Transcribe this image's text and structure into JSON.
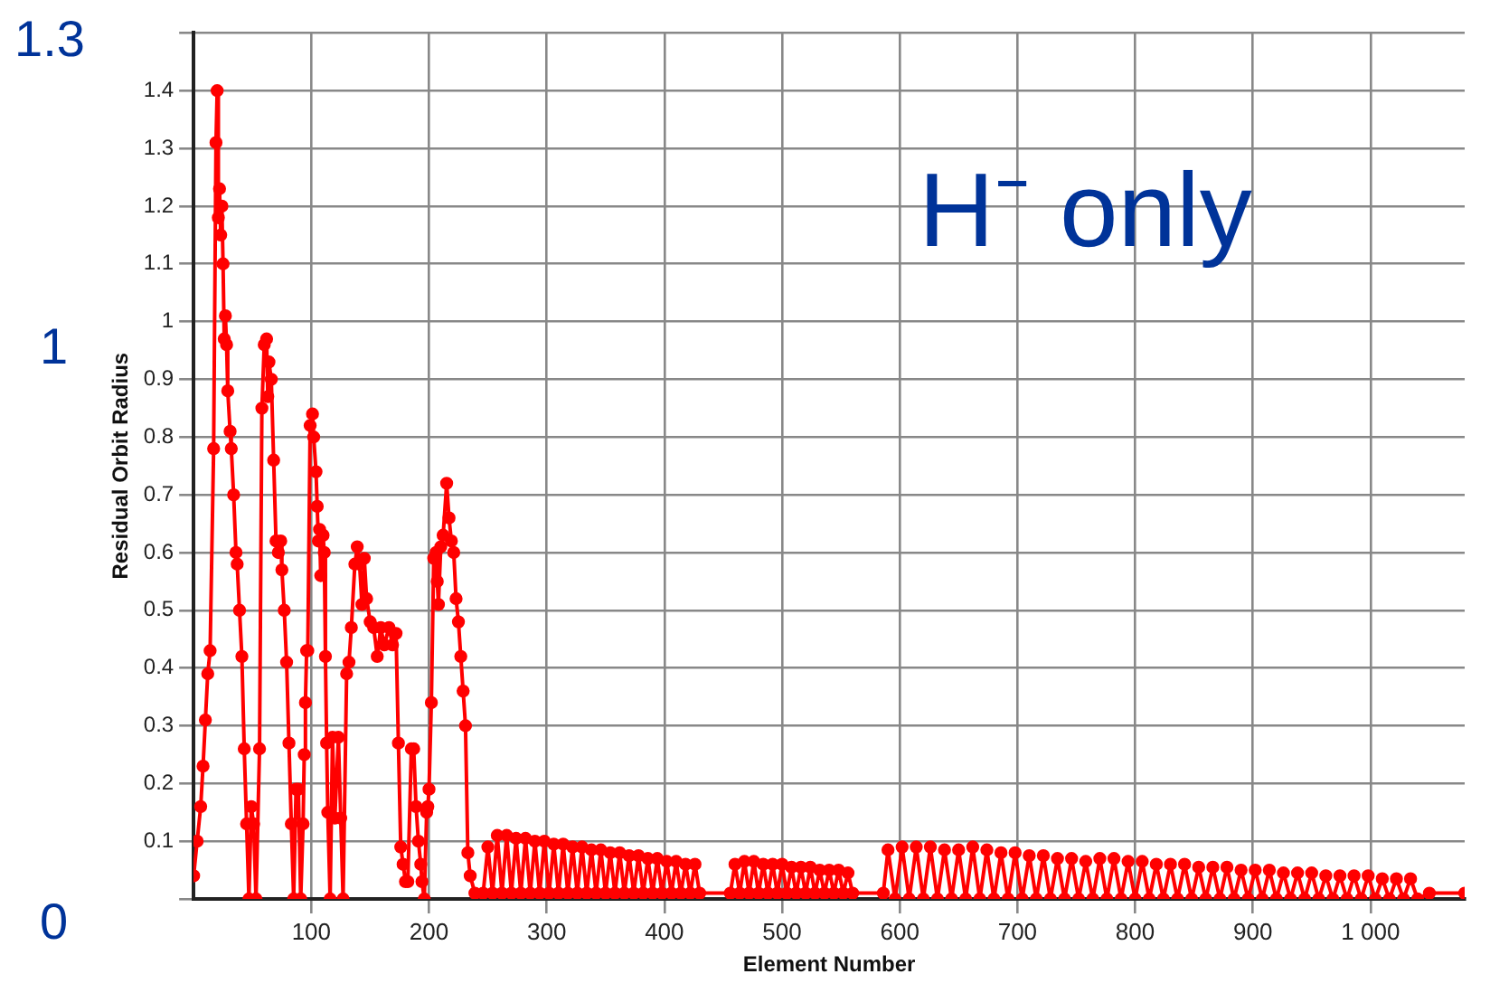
{
  "chart_data": {
    "type": "line",
    "xlabel": "Element Number",
    "ylabel": "Residual Orbit Radius",
    "color": "#ff0000",
    "marker": "circle",
    "grid": true,
    "annotations": [
      "1.3",
      "1",
      "0",
      "H⁻ only"
    ],
    "xlim": [
      0,
      1080
    ],
    "xticks": [
      100,
      200,
      300,
      400,
      500,
      600,
      700,
      800,
      900,
      {
        "value": 1000,
        "label": "1 000"
      }
    ],
    "ylim": [
      0,
      1.5
    ],
    "yticks": [
      {
        "value": 0,
        "label": null
      },
      0.1,
      0.2,
      0.3,
      0.4,
      0.5,
      0.6,
      0.7,
      0.8,
      0.9,
      1,
      1.1,
      1.2,
      1.3,
      1.4,
      {
        "value": 1.5,
        "label": null
      }
    ],
    "x": [
      0,
      3,
      6,
      8,
      10,
      12,
      14,
      17,
      19,
      20,
      21,
      22,
      23,
      24,
      25,
      26,
      27,
      28,
      29,
      31,
      32,
      34,
      36,
      37,
      39,
      41,
      43,
      45,
      47,
      49,
      51,
      53,
      56,
      58,
      60,
      62,
      63,
      64,
      66,
      68,
      70,
      72,
      74,
      75,
      77,
      79,
      81,
      83,
      85,
      87,
      89,
      91,
      93,
      94,
      95,
      96,
      97,
      99,
      101,
      102,
      104,
      105,
      106,
      107,
      108,
      110,
      111,
      112,
      113,
      114,
      116,
      118,
      120,
      123,
      125,
      127,
      130,
      132,
      134,
      137,
      139,
      141,
      143,
      145,
      147,
      150,
      153,
      156,
      159,
      162,
      166,
      169,
      172,
      174,
      176,
      178,
      180,
      182,
      185,
      187,
      189,
      191,
      193,
      194,
      196,
      198,
      199,
      200,
      202,
      204,
      206,
      207,
      208,
      210,
      212,
      215,
      217,
      219,
      221,
      223,
      225,
      227,
      229,
      231,
      233,
      235,
      239,
      246,
      250,
      254,
      258,
      262,
      266,
      270,
      274,
      278,
      282,
      286,
      290,
      294,
      298,
      302,
      306,
      310,
      314,
      318,
      322,
      326,
      330,
      334,
      338,
      342,
      346,
      350,
      354,
      358,
      362,
      366,
      370,
      374,
      378,
      382,
      386,
      390,
      394,
      398,
      402,
      406,
      410,
      414,
      418,
      422,
      426,
      430,
      456,
      460,
      464,
      468,
      472,
      476,
      480,
      484,
      488,
      492,
      496,
      500,
      504,
      508,
      512,
      516,
      520,
      524,
      528,
      532,
      536,
      540,
      544,
      548,
      552,
      556,
      560,
      586,
      590,
      596,
      602,
      608,
      614,
      620,
      626,
      632,
      638,
      644,
      650,
      656,
      662,
      668,
      674,
      680,
      686,
      692,
      698,
      704,
      710,
      716,
      722,
      728,
      734,
      740,
      746,
      752,
      758,
      764,
      770,
      776,
      782,
      788,
      794,
      800,
      806,
      812,
      818,
      824,
      830,
      836,
      842,
      848,
      854,
      860,
      866,
      872,
      878,
      884,
      890,
      896,
      902,
      908,
      914,
      920,
      926,
      932,
      938,
      944,
      950,
      956,
      962,
      968,
      974,
      980,
      986,
      992,
      998,
      1004,
      1010,
      1016,
      1022,
      1028,
      1034,
      1040,
      1050,
      1080
    ],
    "values": [
      0.04,
      0.1,
      0.16,
      0.23,
      0.31,
      0.39,
      0.43,
      0.78,
      1.31,
      1.4,
      1.18,
      1.23,
      1.15,
      1.2,
      1.1,
      0.97,
      1.01,
      0.96,
      0.88,
      0.81,
      0.78,
      0.7,
      0.6,
      0.58,
      0.5,
      0.42,
      0.26,
      0.13,
      0,
      0.16,
      0.13,
      0,
      0.26,
      0.85,
      0.96,
      0.97,
      0.87,
      0.93,
      0.9,
      0.76,
      0.62,
      0.6,
      0.62,
      0.57,
      0.5,
      0.41,
      0.27,
      0.13,
      0,
      0.19,
      0.19,
      0,
      0.13,
      0.25,
      0.34,
      0.43,
      0.43,
      0.82,
      0.84,
      0.8,
      0.74,
      0.68,
      0.62,
      0.64,
      0.56,
      0.63,
      0.6,
      0.42,
      0.27,
      0.15,
      0,
      0.28,
      0.14,
      0.28,
      0.14,
      0,
      0.39,
      0.41,
      0.47,
      0.58,
      0.61,
      0.58,
      0.51,
      0.59,
      0.52,
      0.48,
      0.47,
      0.42,
      0.47,
      0.44,
      0.47,
      0.44,
      0.46,
      0.27,
      0.09,
      0.06,
      0.03,
      0.03,
      0.26,
      0.26,
      0.16,
      0.1,
      0.06,
      0.03,
      0,
      0.15,
      0.16,
      0.19,
      0.34,
      0.59,
      0.6,
      0.55,
      0.51,
      0.61,
      0.63,
      0.72,
      0.66,
      0.62,
      0.6,
      0.52,
      0.48,
      0.42,
      0.36,
      0.3,
      0.08,
      0.04,
      0.01,
      0.01,
      0.09,
      0.01,
      0.11,
      0.01,
      0.11,
      0.01,
      0.105,
      0.01,
      0.105,
      0.01,
      0.1,
      0.01,
      0.1,
      0.01,
      0.095,
      0.01,
      0.095,
      0.01,
      0.09,
      0.01,
      0.09,
      0.01,
      0.085,
      0.01,
      0.085,
      0.01,
      0.08,
      0.01,
      0.08,
      0.01,
      0.075,
      0.01,
      0.075,
      0.01,
      0.07,
      0.01,
      0.07,
      0.01,
      0.065,
      0.01,
      0.065,
      0.01,
      0.06,
      0.01,
      0.06,
      0.01,
      0.01,
      0.06,
      0.01,
      0.065,
      0.01,
      0.065,
      0.01,
      0.06,
      0.01,
      0.06,
      0.01,
      0.06,
      0.01,
      0.055,
      0.01,
      0.055,
      0.01,
      0.055,
      0.01,
      0.05,
      0.01,
      0.05,
      0.01,
      0.05,
      0.01,
      0.045,
      0.01,
      0.01,
      0.085,
      0,
      0.09,
      0,
      0.09,
      0,
      0.09,
      0,
      0.085,
      0,
      0.085,
      0,
      0.09,
      0,
      0.085,
      0,
      0.08,
      0,
      0.08,
      0,
      0.075,
      0,
      0.075,
      0,
      0.07,
      0,
      0.07,
      0,
      0.065,
      0,
      0.07,
      0,
      0.07,
      0,
      0.065,
      0,
      0.065,
      0,
      0.06,
      0,
      0.06,
      0,
      0.06,
      0,
      0.055,
      0,
      0.055,
      0,
      0.055,
      0,
      0.05,
      0,
      0.05,
      0,
      0.05,
      0,
      0.045,
      0,
      0.045,
      0,
      0.045,
      0,
      0.04,
      0,
      0.04,
      0,
      0.04,
      0,
      0.04,
      0,
      0.035,
      0,
      0.035,
      0,
      0.035,
      0,
      0.01,
      0.01
    ]
  }
}
